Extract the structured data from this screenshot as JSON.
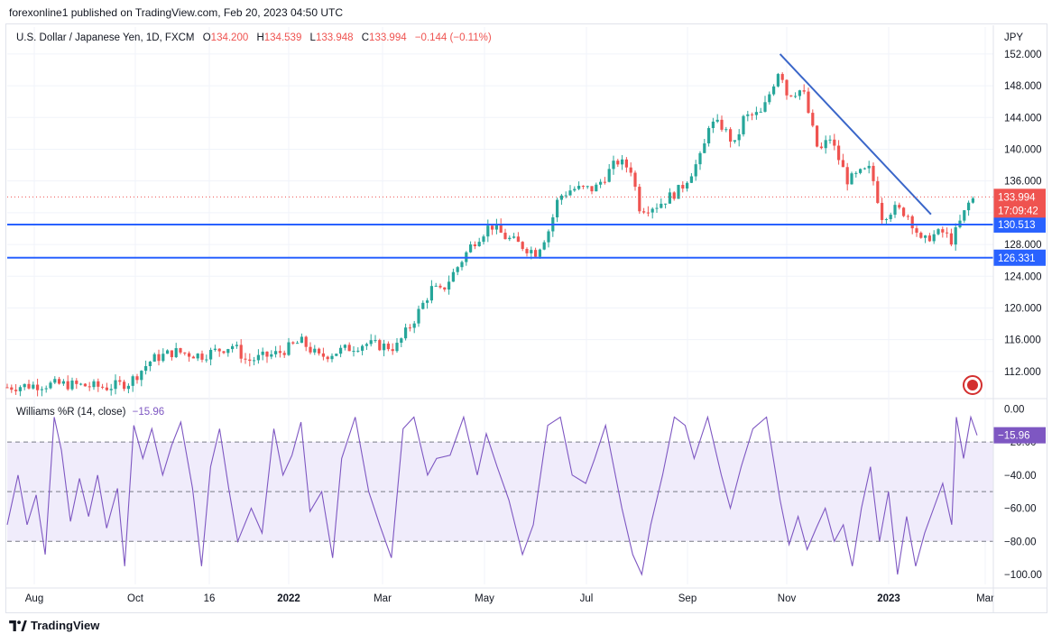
{
  "header": {
    "published": "forexonline1 published on TradingView.com, Feb 20, 2023 04:50 UTC"
  },
  "legend": {
    "symbol": "U.S. Dollar / Japanese Yen, 1D, FXCM",
    "o_label": "O",
    "o": "134.200",
    "h_label": "H",
    "h": "134.539",
    "l_label": "L",
    "l": "133.948",
    "c_label": "C",
    "c": "133.994",
    "change": "−0.144 (−0.11%)"
  },
  "currency": "JPY",
  "indicator": {
    "title": "Williams %R (14, close)",
    "value": "−15.96"
  },
  "footer": {
    "brand": "TradingView"
  },
  "colors": {
    "up": "#26a69a",
    "down": "#ef5350",
    "level_line": "#2962ff",
    "trend_line": "#3a66c9",
    "wr_line": "#7e57c2",
    "wr_band": "#f0ecfb",
    "axis_text": "#131722"
  },
  "chart_data": [
    {
      "type": "candlestick",
      "title": "U.S. Dollar / Japanese Yen, 1D, FXCM",
      "ylim": [
        108.8,
        155.4
      ],
      "y_ticks": [
        "152.000",
        "148.000",
        "144.000",
        "140.000",
        "136.000",
        "132.000",
        "128.000",
        "124.000",
        "120.000",
        "116.000",
        "112.000"
      ],
      "x_ticks": [
        "Aug",
        "Oct",
        "16",
        "2022",
        "Mar",
        "May",
        "Jul",
        "Sep",
        "Nov",
        "2023",
        "Mar"
      ],
      "price_path": [
        [
          0,
          110.0
        ],
        [
          20,
          110.2
        ],
        [
          60,
          110.4
        ],
        [
          110,
          110.0
        ],
        [
          135,
          110.6
        ],
        [
          160,
          113.5
        ],
        [
          185,
          114.5
        ],
        [
          215,
          114.0
        ],
        [
          250,
          115.3
        ],
        [
          265,
          113.3
        ],
        [
          300,
          114.3
        ],
        [
          325,
          115.8
        ],
        [
          345,
          113.8
        ],
        [
          365,
          114.5
        ],
        [
          395,
          115.5
        ],
        [
          430,
          115.0
        ],
        [
          450,
          118.5
        ],
        [
          470,
          122.5
        ],
        [
          480,
          122.0
        ],
        [
          500,
          125.5
        ],
        [
          515,
          128.2
        ],
        [
          535,
          130.5
        ],
        [
          550,
          129.0
        ],
        [
          575,
          127.5
        ],
        [
          585,
          127.0
        ],
        [
          600,
          130.0
        ],
        [
          610,
          134.0
        ],
        [
          625,
          135.0
        ],
        [
          650,
          135.0
        ],
        [
          675,
          138.5
        ],
        [
          690,
          137.5
        ],
        [
          700,
          132.5
        ],
        [
          720,
          133.0
        ],
        [
          745,
          135.0
        ],
        [
          770,
          139.5
        ],
        [
          775,
          143.2
        ],
        [
          790,
          143.0
        ],
        [
          805,
          140.5
        ],
        [
          815,
          144.0
        ],
        [
          835,
          144.5
        ],
        [
          855,
          150.5
        ],
        [
          862,
          147.0
        ],
        [
          880,
          147.5
        ],
        [
          892,
          142.0
        ],
        [
          898,
          139.5
        ],
        [
          910,
          141.5
        ],
        [
          930,
          136.0
        ],
        [
          945,
          137.0
        ],
        [
          955,
          137.5
        ],
        [
          968,
          131.5
        ],
        [
          980,
          132.5
        ],
        [
          995,
          132.0
        ],
        [
          1005,
          130.0
        ],
        [
          1012,
          128.0
        ],
        [
          1020,
          129.0
        ],
        [
          1035,
          129.5
        ],
        [
          1045,
          128.5
        ],
        [
          1055,
          131.0
        ],
        [
          1065,
          133.5
        ],
        [
          1073,
          134.0
        ]
      ],
      "horizontal_levels": [
        {
          "value": 130.513,
          "label": "130.513"
        },
        {
          "value": 126.331,
          "label": "126.331"
        }
      ],
      "trend_line": {
        "from": [
          855,
          152.0
        ],
        "to": [
          1022,
          131.8
        ]
      },
      "last_price": {
        "value": 133.994,
        "label": "133.994",
        "countdown": "17:09:42"
      }
    },
    {
      "type": "line",
      "title": "Williams %R (14, close)",
      "ylim": [
        -106,
        4
      ],
      "y_ticks": [
        "0.00",
        "−20.00",
        "−40.00",
        "−60.00",
        "−80.00",
        "−100.00"
      ],
      "levels": [
        -20,
        -50,
        -80
      ],
      "last": {
        "value": -15.96,
        "label": "−15.96"
      },
      "series_path": [
        [
          0,
          -70
        ],
        [
          12,
          -40
        ],
        [
          22,
          -70
        ],
        [
          32,
          -52
        ],
        [
          42,
          -88
        ],
        [
          52,
          -5
        ],
        [
          60,
          -25
        ],
        [
          70,
          -68
        ],
        [
          80,
          -42
        ],
        [
          90,
          -65
        ],
        [
          100,
          -40
        ],
        [
          110,
          -72
        ],
        [
          122,
          -48
        ],
        [
          130,
          -95
        ],
        [
          140,
          -10
        ],
        [
          150,
          -30
        ],
        [
          160,
          -12
        ],
        [
          172,
          -40
        ],
        [
          182,
          -22
        ],
        [
          192,
          -8
        ],
        [
          205,
          -48
        ],
        [
          215,
          -95
        ],
        [
          225,
          -35
        ],
        [
          235,
          -12
        ],
        [
          245,
          -48
        ],
        [
          255,
          -80
        ],
        [
          270,
          -60
        ],
        [
          282,
          -75
        ],
        [
          295,
          -12
        ],
        [
          305,
          -40
        ],
        [
          315,
          -28
        ],
        [
          325,
          -8
        ],
        [
          335,
          -62
        ],
        [
          348,
          -50
        ],
        [
          360,
          -90
        ],
        [
          370,
          -30
        ],
        [
          385,
          -5
        ],
        [
          400,
          -50
        ],
        [
          412,
          -70
        ],
        [
          425,
          -90
        ],
        [
          438,
          -12
        ],
        [
          450,
          -5
        ],
        [
          465,
          -40
        ],
        [
          475,
          -30
        ],
        [
          490,
          -28
        ],
        [
          505,
          -5
        ],
        [
          520,
          -40
        ],
        [
          530,
          -15
        ],
        [
          542,
          -35
        ],
        [
          555,
          -55
        ],
        [
          570,
          -88
        ],
        [
          582,
          -70
        ],
        [
          598,
          -10
        ],
        [
          612,
          -5
        ],
        [
          625,
          -40
        ],
        [
          640,
          -45
        ],
        [
          650,
          -30
        ],
        [
          662,
          -10
        ],
        [
          680,
          -60
        ],
        [
          692,
          -88
        ],
        [
          702,
          -100
        ],
        [
          712,
          -70
        ],
        [
          725,
          -40
        ],
        [
          738,
          -5
        ],
        [
          750,
          -10
        ],
        [
          760,
          -30
        ],
        [
          775,
          -5
        ],
        [
          790,
          -40
        ],
        [
          800,
          -60
        ],
        [
          812,
          -35
        ],
        [
          825,
          -12
        ],
        [
          840,
          -5
        ],
        [
          855,
          -55
        ],
        [
          865,
          -82
        ],
        [
          875,
          -65
        ],
        [
          885,
          -85
        ],
        [
          895,
          -72
        ],
        [
          905,
          -60
        ],
        [
          915,
          -80
        ],
        [
          925,
          -70
        ],
        [
          935,
          -95
        ],
        [
          945,
          -60
        ],
        [
          955,
          -35
        ],
        [
          965,
          -80
        ],
        [
          975,
          -50
        ],
        [
          985,
          -100
        ],
        [
          995,
          -65
        ],
        [
          1005,
          -95
        ],
        [
          1015,
          -75
        ],
        [
          1025,
          -60
        ],
        [
          1035,
          -45
        ],
        [
          1045,
          -70
        ],
        [
          1050,
          -5
        ],
        [
          1058,
          -30
        ],
        [
          1066,
          -5
        ],
        [
          1073,
          -16
        ]
      ]
    }
  ]
}
